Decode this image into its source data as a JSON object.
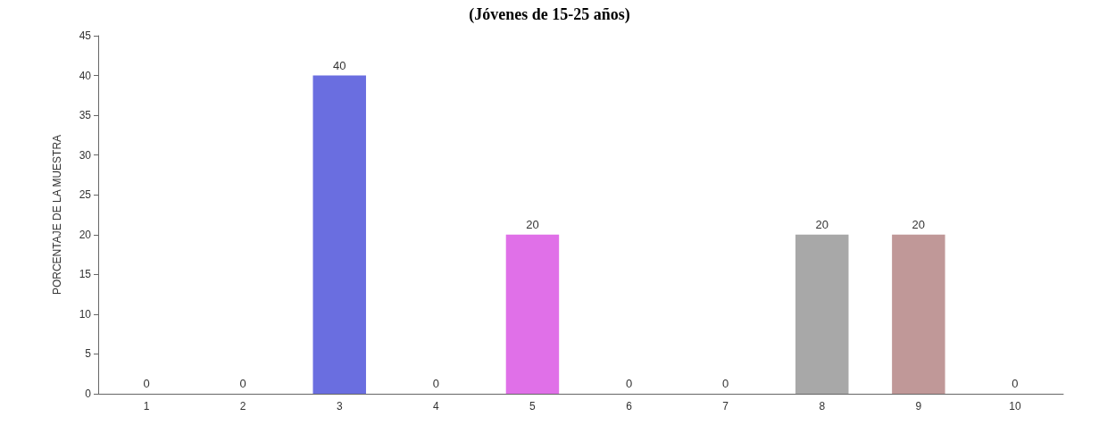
{
  "chart_data": {
    "type": "bar",
    "title": "(Jóvenes de 15-25 años)",
    "ylabel": "PORCENTAJE DE LA MUESTRA",
    "categories": [
      "1",
      "2",
      "3",
      "4",
      "5",
      "6",
      "7",
      "8",
      "9",
      "10"
    ],
    "values": [
      0,
      0,
      40,
      0,
      20,
      0,
      0,
      20,
      20,
      0
    ],
    "colors": [
      "#e06060",
      "#70d070",
      "#6a6ee0",
      "#f0f080",
      "#e070e8",
      "#b0f0f0",
      "#f0c050",
      "#a8a8a8",
      "#c09898",
      "#2e8b57"
    ],
    "ylim": [
      0,
      45
    ],
    "yticks": [
      0,
      5,
      10,
      15,
      20,
      25,
      30,
      35,
      40,
      45
    ],
    "grid": false,
    "data_labels": true
  }
}
